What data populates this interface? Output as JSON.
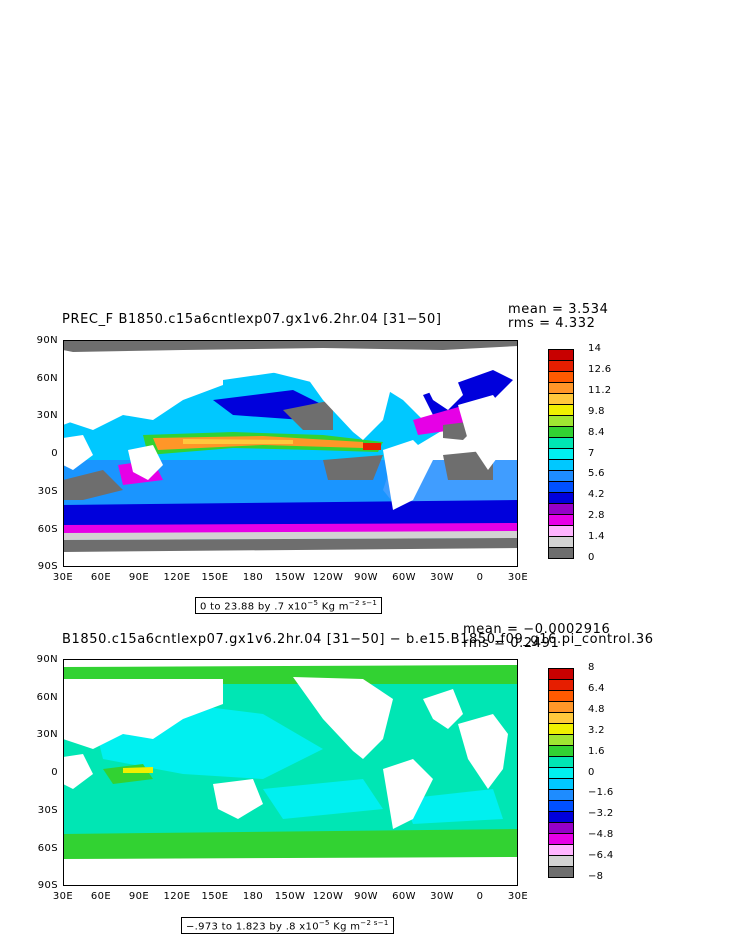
{
  "chart_data": [
    {
      "type": "heatmap",
      "title": "PREC_F B1850.c15a6cntlexp07.gx1v6.2hr.04 [31−50]",
      "stats": {
        "mean_label": "mean = 3.534",
        "rms_label": "rms = 4.332"
      },
      "range_label_prefix": "0 to 23.88 by .7 x10",
      "range_exp": "−5",
      "range_unit": " Kg m",
      "range_unit_exp": "−2 s−1",
      "x_ticks": [
        "30E",
        "60E",
        "90E",
        "120E",
        "150E",
        "180",
        "150W",
        "120W",
        "90W",
        "60W",
        "30W",
        "0",
        "30E"
      ],
      "y_ticks": [
        "90N",
        "60N",
        "30N",
        "0",
        "30S",
        "60S",
        "90S"
      ],
      "colorbar": {
        "labels": [
          "14",
          "12.6",
          "11.2",
          "9.8",
          "8.4",
          "7",
          "5.6",
          "4.2",
          "2.8",
          "1.4",
          "0"
        ],
        "colors": [
          "#c80000",
          "#e61e00",
          "#ff5a00",
          "#ff9628",
          "#ffc83c",
          "#f0f000",
          "#a0e632",
          "#32d232",
          "#00e6b4",
          "#00f0f0",
          "#00c8ff",
          "#1e8cff",
          "#0050ff",
          "#0000dc",
          "#9600c8",
          "#e600e6",
          "#ffb4ff",
          "#d2d2d2",
          "#6e6e6e"
        ]
      }
    },
    {
      "type": "heatmap",
      "title": "B1850.c15a6cntlexp07.gx1v6.2hr.04 [31−50] − b.e15.B1850.f09_g16.pi_control.36",
      "stats": {
        "mean_label": "mean = −0.0002916",
        "rms_label": "rms = 0.2491"
      },
      "range_label_prefix": "−.973 to 1.823 by .8 x10",
      "range_exp": "−5",
      "range_unit": " Kg m",
      "range_unit_exp": "−2 s−1",
      "x_ticks": [
        "30E",
        "60E",
        "90E",
        "120E",
        "150E",
        "180",
        "150W",
        "120W",
        "90W",
        "60W",
        "30W",
        "0",
        "30E"
      ],
      "y_ticks": [
        "90N",
        "60N",
        "30N",
        "0",
        "30S",
        "60S",
        "90S"
      ],
      "colorbar": {
        "labels": [
          "8",
          "6.4",
          "4.8",
          "3.2",
          "1.6",
          "0",
          "−1.6",
          "−3.2",
          "−4.8",
          "−6.4",
          "−8"
        ],
        "colors": [
          "#c80000",
          "#e61e00",
          "#ff5a00",
          "#ff9628",
          "#ffc83c",
          "#f0f000",
          "#a0e632",
          "#32d232",
          "#00e6b4",
          "#00f0f0",
          "#00c8ff",
          "#1e8cff",
          "#0050ff",
          "#0000dc",
          "#9600c8",
          "#e600e6",
          "#ffb4ff",
          "#d2d2d2",
          "#6e6e6e"
        ]
      }
    }
  ]
}
